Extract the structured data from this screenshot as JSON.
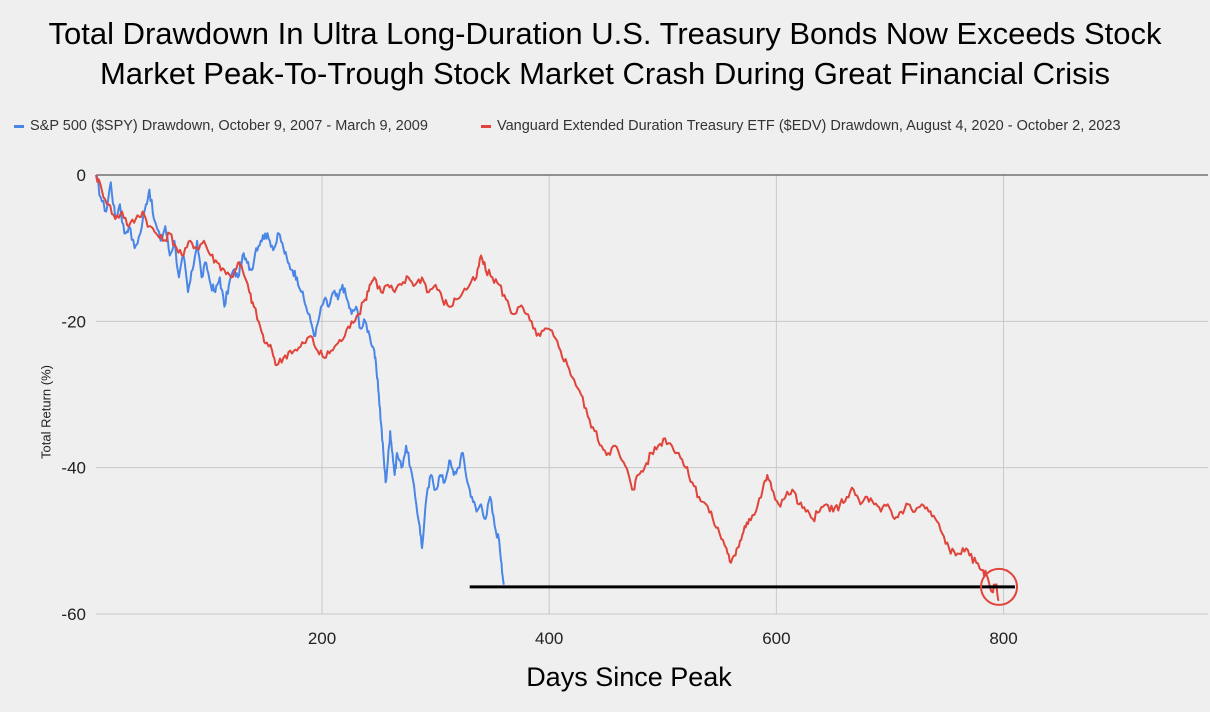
{
  "chart_data": {
    "type": "line",
    "title": [
      "Total Drawdown In Ultra Long-Duration U.S. Treasury Bonds Now Exceeds Stock",
      "Market Peak-To-Trough Stock Market Crash During Great Financial Crisis"
    ],
    "xlabel": "Days Since Peak",
    "ylabel": "Total Return (%)",
    "xlim": [
      1,
      980
    ],
    "ylim": [
      -60,
      0
    ],
    "x_ticks": [
      200,
      400,
      600,
      800
    ],
    "x_tick_labels": [
      "200",
      "400",
      "600",
      "800"
    ],
    "y_ticks": [
      0,
      -20,
      -40,
      -60
    ],
    "y_tick_labels": [
      "0",
      "-20",
      "-40",
      "-60"
    ],
    "legend_position": "top",
    "series": [
      {
        "name": "S&P 500 ($SPY) Drawdown, October 9, 2007 - March 9, 2009",
        "color": "#4a86e8",
        "points": [
          [
            1,
            0
          ],
          [
            5,
            -3
          ],
          [
            10,
            -5
          ],
          [
            14,
            -1
          ],
          [
            18,
            -6
          ],
          [
            22,
            -4
          ],
          [
            26,
            -8
          ],
          [
            30,
            -7
          ],
          [
            35,
            -10
          ],
          [
            40,
            -8
          ],
          [
            45,
            -4
          ],
          [
            48,
            -2
          ],
          [
            52,
            -6
          ],
          [
            58,
            -9
          ],
          [
            62,
            -7
          ],
          [
            66,
            -11
          ],
          [
            70,
            -9
          ],
          [
            74,
            -14
          ],
          [
            78,
            -11
          ],
          [
            82,
            -16
          ],
          [
            86,
            -13
          ],
          [
            90,
            -9
          ],
          [
            94,
            -14
          ],
          [
            98,
            -12
          ],
          [
            102,
            -15
          ],
          [
            106,
            -16
          ],
          [
            110,
            -14
          ],
          [
            114,
            -18
          ],
          [
            118,
            -15
          ],
          [
            122,
            -13
          ],
          [
            126,
            -14
          ],
          [
            130,
            -11
          ],
          [
            134,
            -12
          ],
          [
            138,
            -13
          ],
          [
            142,
            -10
          ],
          [
            146,
            -9
          ],
          [
            150,
            -8
          ],
          [
            154,
            -9
          ],
          [
            158,
            -10
          ],
          [
            162,
            -8
          ],
          [
            166,
            -10
          ],
          [
            170,
            -12
          ],
          [
            174,
            -13
          ],
          [
            178,
            -14
          ],
          [
            182,
            -16
          ],
          [
            186,
            -18
          ],
          [
            190,
            -20
          ],
          [
            194,
            -22
          ],
          [
            198,
            -19
          ],
          [
            202,
            -17
          ],
          [
            206,
            -18
          ],
          [
            210,
            -16
          ],
          [
            214,
            -17
          ],
          [
            218,
            -15
          ],
          [
            222,
            -17
          ],
          [
            226,
            -19
          ],
          [
            230,
            -18
          ],
          [
            234,
            -21
          ],
          [
            238,
            -20
          ],
          [
            242,
            -22
          ],
          [
            246,
            -24
          ],
          [
            248,
            -27
          ],
          [
            250,
            -30
          ],
          [
            252,
            -34
          ],
          [
            254,
            -38
          ],
          [
            256,
            -42
          ],
          [
            258,
            -39
          ],
          [
            260,
            -35
          ],
          [
            262,
            -38
          ],
          [
            264,
            -41
          ],
          [
            266,
            -38
          ],
          [
            270,
            -40
          ],
          [
            274,
            -37
          ],
          [
            278,
            -40
          ],
          [
            282,
            -44
          ],
          [
            286,
            -48
          ],
          [
            288,
            -51
          ],
          [
            292,
            -44
          ],
          [
            296,
            -41
          ],
          [
            300,
            -43
          ],
          [
            304,
            -41
          ],
          [
            308,
            -42
          ],
          [
            312,
            -39
          ],
          [
            316,
            -41
          ],
          [
            320,
            -40
          ],
          [
            324,
            -38
          ],
          [
            328,
            -42
          ],
          [
            332,
            -44
          ],
          [
            336,
            -46
          ],
          [
            340,
            -45
          ],
          [
            344,
            -47
          ],
          [
            348,
            -44
          ],
          [
            352,
            -48
          ],
          [
            356,
            -50
          ],
          [
            358,
            -53
          ],
          [
            360,
            -56
          ]
        ]
      },
      {
        "name": "Vanguard Extended Duration Treasury ETF ($EDV) Drawdown, August 4, 2020 - October 2, 2023",
        "color": "#e0443a",
        "points": [
          [
            1,
            0
          ],
          [
            6,
            -2
          ],
          [
            12,
            -4
          ],
          [
            18,
            -6
          ],
          [
            24,
            -5
          ],
          [
            30,
            -7
          ],
          [
            36,
            -6
          ],
          [
            42,
            -5
          ],
          [
            48,
            -7
          ],
          [
            54,
            -8
          ],
          [
            60,
            -9
          ],
          [
            66,
            -8
          ],
          [
            72,
            -10
          ],
          [
            78,
            -11
          ],
          [
            84,
            -9
          ],
          [
            90,
            -10
          ],
          [
            96,
            -9
          ],
          [
            102,
            -11
          ],
          [
            108,
            -12
          ],
          [
            114,
            -13
          ],
          [
            120,
            -14
          ],
          [
            126,
            -12
          ],
          [
            130,
            -13
          ],
          [
            136,
            -16
          ],
          [
            140,
            -18
          ],
          [
            146,
            -21
          ],
          [
            150,
            -23
          ],
          [
            156,
            -24
          ],
          [
            160,
            -26
          ],
          [
            166,
            -25
          ],
          [
            172,
            -24
          ],
          [
            178,
            -24
          ],
          [
            184,
            -23
          ],
          [
            190,
            -22
          ],
          [
            196,
            -24
          ],
          [
            202,
            -25
          ],
          [
            208,
            -24
          ],
          [
            214,
            -23
          ],
          [
            220,
            -22
          ],
          [
            226,
            -20
          ],
          [
            232,
            -19
          ],
          [
            238,
            -17
          ],
          [
            242,
            -15
          ],
          [
            246,
            -14
          ],
          [
            252,
            -16
          ],
          [
            258,
            -15
          ],
          [
            264,
            -16
          ],
          [
            270,
            -15
          ],
          [
            276,
            -14
          ],
          [
            282,
            -15
          ],
          [
            288,
            -14
          ],
          [
            294,
            -16
          ],
          [
            300,
            -15
          ],
          [
            306,
            -17
          ],
          [
            312,
            -18
          ],
          [
            318,
            -17
          ],
          [
            324,
            -16
          ],
          [
            330,
            -15
          ],
          [
            336,
            -14
          ],
          [
            340,
            -11
          ],
          [
            344,
            -13
          ],
          [
            350,
            -14
          ],
          [
            356,
            -15
          ],
          [
            362,
            -17
          ],
          [
            368,
            -19
          ],
          [
            374,
            -18
          ],
          [
            380,
            -19
          ],
          [
            386,
            -21
          ],
          [
            392,
            -22
          ],
          [
            398,
            -21
          ],
          [
            404,
            -22
          ],
          [
            410,
            -24
          ],
          [
            416,
            -26
          ],
          [
            422,
            -28
          ],
          [
            428,
            -30
          ],
          [
            434,
            -33
          ],
          [
            440,
            -35
          ],
          [
            446,
            -37
          ],
          [
            452,
            -38
          ],
          [
            458,
            -37
          ],
          [
            464,
            -39
          ],
          [
            470,
            -41
          ],
          [
            474,
            -43
          ],
          [
            478,
            -41
          ],
          [
            484,
            -40
          ],
          [
            490,
            -38
          ],
          [
            496,
            -37
          ],
          [
            502,
            -36
          ],
          [
            508,
            -37
          ],
          [
            514,
            -38
          ],
          [
            520,
            -40
          ],
          [
            526,
            -42
          ],
          [
            532,
            -44
          ],
          [
            538,
            -45
          ],
          [
            544,
            -47
          ],
          [
            550,
            -49
          ],
          [
            556,
            -51
          ],
          [
            560,
            -53
          ],
          [
            564,
            -52
          ],
          [
            568,
            -50
          ],
          [
            572,
            -48
          ],
          [
            576,
            -47
          ],
          [
            582,
            -46
          ],
          [
            588,
            -43
          ],
          [
            592,
            -41
          ],
          [
            596,
            -43
          ],
          [
            602,
            -45
          ],
          [
            608,
            -44
          ],
          [
            614,
            -43
          ],
          [
            620,
            -45
          ],
          [
            626,
            -46
          ],
          [
            632,
            -47
          ],
          [
            638,
            -46
          ],
          [
            644,
            -45
          ],
          [
            650,
            -46
          ],
          [
            656,
            -45
          ],
          [
            662,
            -44
          ],
          [
            668,
            -43
          ],
          [
            674,
            -45
          ],
          [
            680,
            -44
          ],
          [
            686,
            -45
          ],
          [
            692,
            -46
          ],
          [
            698,
            -45
          ],
          [
            704,
            -47
          ],
          [
            710,
            -46
          ],
          [
            716,
            -45
          ],
          [
            722,
            -46
          ],
          [
            728,
            -45
          ],
          [
            734,
            -46
          ],
          [
            740,
            -47
          ],
          [
            746,
            -49
          ],
          [
            752,
            -51
          ],
          [
            758,
            -52
          ],
          [
            764,
            -51
          ],
          [
            770,
            -52
          ],
          [
            776,
            -53
          ],
          [
            782,
            -54
          ],
          [
            786,
            -55
          ],
          [
            790,
            -57
          ],
          [
            793,
            -56
          ],
          [
            796,
            -58
          ]
        ]
      }
    ],
    "annotations": [
      {
        "type": "horizontal-line",
        "y": -56.3,
        "x_start": 330,
        "x_end": 810,
        "color": "#000000"
      },
      {
        "type": "circle",
        "x": 796,
        "y": -56.3,
        "color": "#e0443a"
      }
    ]
  }
}
